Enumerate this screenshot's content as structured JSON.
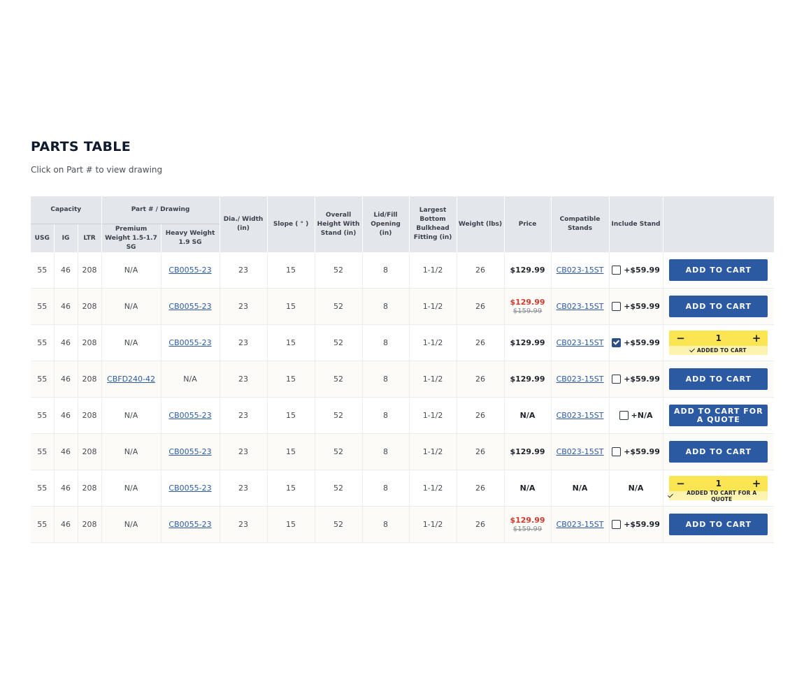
{
  "page": {
    "title": "PARTS TABLE",
    "subtitle": "Click on Part # to view drawing"
  },
  "headers": {
    "capacity": "Capacity",
    "usg": "USG",
    "ig": "IG",
    "ltr": "LTR",
    "part_drawing": "Part # / Drawing",
    "premium_weight": "Premium Weight 1.5-1.7 SG",
    "heavy_weight": "Heavy Weight 1.9 SG",
    "dia_width": "Dia./ Width (in)",
    "slope": "Slope ( ° )",
    "overall_height": "Overall Height With Stand (in)",
    "lid_fill": "Lid/Fill Opening (in)",
    "bulkhead": "Largest Bottom Bulkhead Fitting (in)",
    "weight": "Weight (lbs)",
    "price": "Price",
    "compatible_stands": "Compatible Stands",
    "include_stand": "Include Stand"
  },
  "rows": [
    {
      "usg": "55",
      "ig": "46",
      "ltr": "208",
      "premium": "N/A",
      "premium_link": false,
      "heavy": "CB0055-23",
      "heavy_link": true,
      "dia": "23",
      "slope": "15",
      "height": "52",
      "lid": "8",
      "bulkhead": "1-1/2",
      "weight": "26",
      "price": "$129.99",
      "price_orig": "",
      "sale": false,
      "stand": "CB023-15ST",
      "stand_link": true,
      "include": "+$59.99",
      "checkbox": true,
      "checked": false,
      "action": "button",
      "action_label": "ADD TO CART",
      "qty": "",
      "added_label": ""
    },
    {
      "usg": "55",
      "ig": "46",
      "ltr": "208",
      "premium": "N/A",
      "premium_link": false,
      "heavy": "CB0055-23",
      "heavy_link": true,
      "dia": "23",
      "slope": "15",
      "height": "52",
      "lid": "8",
      "bulkhead": "1-1/2",
      "weight": "26",
      "price": "$129.99",
      "price_orig": "$159.99",
      "sale": true,
      "stand": "CB023-15ST",
      "stand_link": true,
      "include": "+$59.99",
      "checkbox": true,
      "checked": false,
      "action": "button",
      "action_label": "ADD TO CART",
      "qty": "",
      "added_label": ""
    },
    {
      "usg": "55",
      "ig": "46",
      "ltr": "208",
      "premium": "N/A",
      "premium_link": false,
      "heavy": "CB0055-23",
      "heavy_link": true,
      "dia": "23",
      "slope": "15",
      "height": "52",
      "lid": "8",
      "bulkhead": "1-1/2",
      "weight": "26",
      "price": "$129.99",
      "price_orig": "",
      "sale": false,
      "stand": "CB023-15ST",
      "stand_link": true,
      "include": "+$59.99",
      "checkbox": true,
      "checked": true,
      "action": "qty",
      "action_label": "",
      "qty": "1",
      "added_label": "ADDED TO CART"
    },
    {
      "usg": "55",
      "ig": "46",
      "ltr": "208",
      "premium": "CBFD240-42",
      "premium_link": true,
      "heavy": "N/A",
      "heavy_link": false,
      "dia": "23",
      "slope": "15",
      "height": "52",
      "lid": "8",
      "bulkhead": "1-1/2",
      "weight": "26",
      "price": "$129.99",
      "price_orig": "",
      "sale": false,
      "stand": "CB023-15ST",
      "stand_link": true,
      "include": "+$59.99",
      "checkbox": true,
      "checked": false,
      "action": "button",
      "action_label": "ADD TO CART",
      "qty": "",
      "added_label": ""
    },
    {
      "usg": "55",
      "ig": "46",
      "ltr": "208",
      "premium": "N/A",
      "premium_link": false,
      "heavy": "CB0055-23",
      "heavy_link": true,
      "dia": "23",
      "slope": "15",
      "height": "52",
      "lid": "8",
      "bulkhead": "1-1/2",
      "weight": "26",
      "price": "N/A",
      "price_orig": "",
      "sale": false,
      "stand": "CB023-15ST",
      "stand_link": true,
      "include": "+N/A",
      "checkbox": true,
      "checked": false,
      "action": "button",
      "action_label": "ADD TO CART FOR A QUOTE",
      "qty": "",
      "added_label": ""
    },
    {
      "usg": "55",
      "ig": "46",
      "ltr": "208",
      "premium": "N/A",
      "premium_link": false,
      "heavy": "CB0055-23",
      "heavy_link": true,
      "dia": "23",
      "slope": "15",
      "height": "52",
      "lid": "8",
      "bulkhead": "1-1/2",
      "weight": "26",
      "price": "$129.99",
      "price_orig": "",
      "sale": false,
      "stand": "CB023-15ST",
      "stand_link": true,
      "include": "+$59.99",
      "checkbox": true,
      "checked": false,
      "action": "button",
      "action_label": "ADD TO CART",
      "qty": "",
      "added_label": ""
    },
    {
      "usg": "55",
      "ig": "46",
      "ltr": "208",
      "premium": "N/A",
      "premium_link": false,
      "heavy": "CB0055-23",
      "heavy_link": true,
      "dia": "23",
      "slope": "15",
      "height": "52",
      "lid": "8",
      "bulkhead": "1-1/2",
      "weight": "26",
      "price": "N/A",
      "price_orig": "",
      "sale": false,
      "stand": "N/A",
      "stand_link": false,
      "include": "N/A",
      "checkbox": false,
      "checked": false,
      "action": "qty",
      "action_label": "",
      "qty": "1",
      "added_label": "ADDED TO CART FOR A QUOTE"
    },
    {
      "usg": "55",
      "ig": "46",
      "ltr": "208",
      "premium": "N/A",
      "premium_link": false,
      "heavy": "CB0055-23",
      "heavy_link": true,
      "dia": "23",
      "slope": "15",
      "height": "52",
      "lid": "8",
      "bulkhead": "1-1/2",
      "weight": "26",
      "price": "$129.99",
      "price_orig": "$159.99",
      "sale": true,
      "stand": "CB023-15ST",
      "stand_link": true,
      "include": "+$59.99",
      "checkbox": true,
      "checked": false,
      "action": "button",
      "action_label": "ADD TO CART",
      "qty": "",
      "added_label": ""
    }
  ],
  "icons": {
    "minus": "minus-icon",
    "plus": "plus-icon",
    "check": "check-icon",
    "checkbox": "checkbox-icon"
  },
  "colors": {
    "button": "#2b5aa3",
    "qty_bar": "#fbe552",
    "sale_price": "#d13b2f",
    "link": "#2c5aa0",
    "header_bg": "#e3e6ea"
  }
}
